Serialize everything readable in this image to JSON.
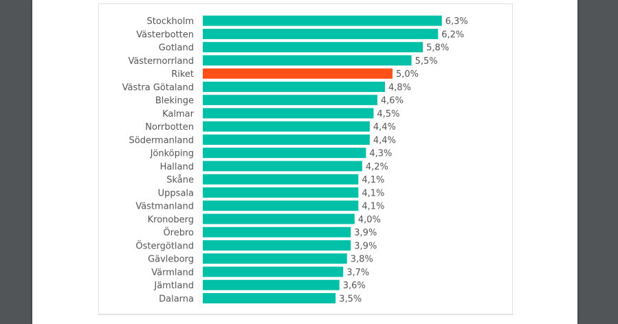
{
  "chart_data": {
    "type": "bar",
    "orientation": "horizontal",
    "categories": [
      "Stockholm",
      "Västerbotten",
      "Gotland",
      "Västernorrland",
      "Riket",
      "Västra Götaland",
      "Blekinge",
      "Kalmar",
      "Norrbotten",
      "Södermanland",
      "Jönköping",
      "Halland",
      "Skåne",
      "Uppsala",
      "Västmanland",
      "Kronoberg",
      "Örebro",
      "Östergötland",
      "Gävleborg",
      "Värmland",
      "Jämtland",
      "Dalarna"
    ],
    "values": [
      6.3,
      6.2,
      5.8,
      5.5,
      5.0,
      4.8,
      4.6,
      4.5,
      4.4,
      4.4,
      4.3,
      4.2,
      4.1,
      4.1,
      4.1,
      4.0,
      3.9,
      3.9,
      3.8,
      3.7,
      3.6,
      3.5
    ],
    "value_labels": [
      "6,3%",
      "6,2%",
      "5,8%",
      "5,5%",
      "5,0%",
      "4,8%",
      "4,6%",
      "4,5%",
      "4,4%",
      "4,4%",
      "4,3%",
      "4,2%",
      "4,1%",
      "4,1%",
      "4,1%",
      "4,0%",
      "3,9%",
      "3,9%",
      "3,8%",
      "3,7%",
      "3,6%",
      "3,5%"
    ],
    "highlight": "Riket",
    "colors": {
      "bar": "#00c0a8",
      "highlight": "#ff5019"
    },
    "grid": false,
    "legend": "none"
  }
}
